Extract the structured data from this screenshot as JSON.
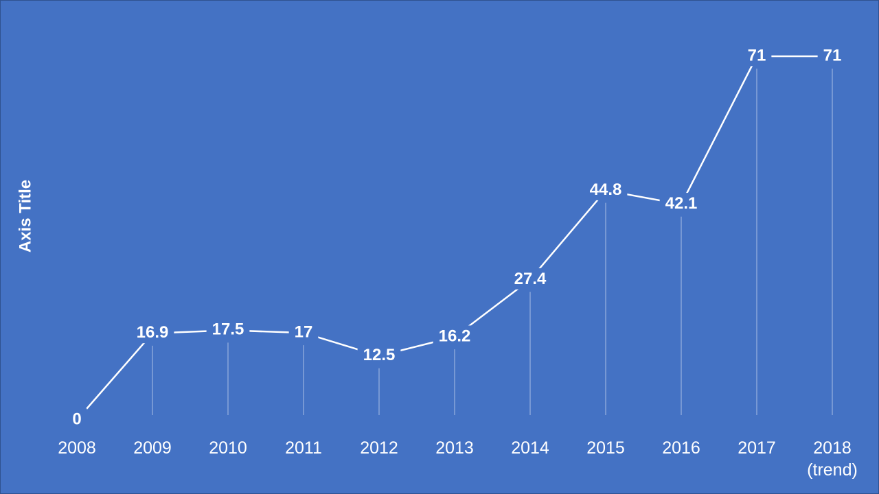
{
  "chart_data": {
    "type": "line",
    "y_axis_title": "Axis Title",
    "categories": [
      "2008",
      "2009",
      "2010",
      "2011",
      "2012",
      "2013",
      "2014",
      "2015",
      "2016",
      "2017",
      "2018 (trend)"
    ],
    "values": [
      0,
      16.9,
      17.5,
      17,
      12.5,
      16.2,
      27.4,
      44.8,
      42.1,
      71,
      71
    ],
    "color": "#ffffff",
    "background": "#4472c4",
    "drop_lines": true
  }
}
